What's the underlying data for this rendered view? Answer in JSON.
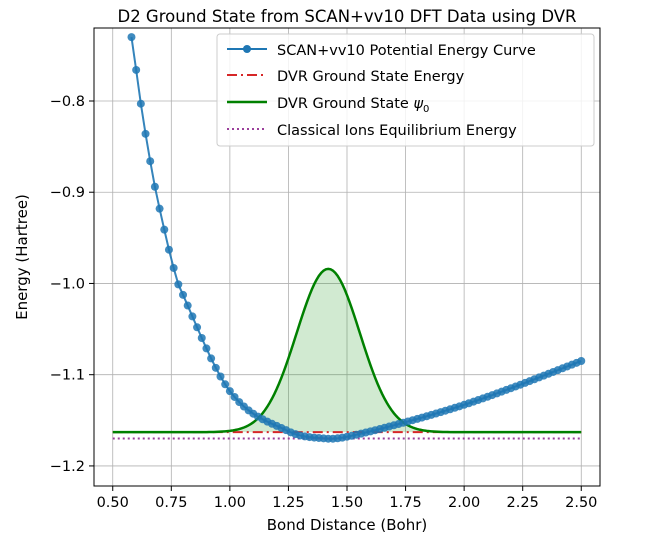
{
  "chart_data": {
    "type": "line",
    "title": "D2 Ground State from SCAN+vv10 DFT Data using DVR",
    "xlabel": "Bond Distance (Bohr)",
    "ylabel": "Energy (Hartree)",
    "xlim": [
      0.42,
      2.58
    ],
    "ylim": [
      -1.222,
      -0.72
    ],
    "x_ticks": [
      "0.50",
      "0.75",
      "1.00",
      "1.25",
      "1.50",
      "1.75",
      "2.00",
      "2.25",
      "2.50"
    ],
    "y_ticks": [
      "−0.8",
      "−0.9",
      "−1.0",
      "−1.1",
      "−1.2"
    ],
    "grid": true,
    "legend_position": "top-right",
    "series": [
      {
        "name": "SCAN+vv10 Potential Energy Curve",
        "style": "line-with-markers",
        "color": "#1f77b4",
        "x_start": 0.58,
        "x_end": 2.5,
        "x_step": 0.02,
        "equilibrium_x": 1.41,
        "equilibrium_energy": -1.17,
        "sample_points": [
          [
            0.58,
            -0.73
          ],
          [
            0.6,
            -0.766
          ],
          [
            0.62,
            -0.803
          ],
          [
            0.64,
            -0.836
          ],
          [
            0.66,
            -0.866
          ],
          [
            0.68,
            -0.894
          ],
          [
            0.7,
            -0.918
          ],
          [
            0.72,
            -0.941
          ],
          [
            0.74,
            -0.963
          ],
          [
            0.76,
            -0.983
          ],
          [
            0.78,
            -1.001
          ],
          [
            1.0,
            -1.118
          ],
          [
            1.25,
            -1.162
          ],
          [
            1.41,
            -1.17
          ],
          [
            1.5,
            -1.168
          ],
          [
            1.75,
            -1.152
          ],
          [
            2.0,
            -1.133
          ],
          [
            2.25,
            -1.11
          ],
          [
            2.5,
            -1.085
          ]
        ]
      },
      {
        "name": "DVR Ground State Energy",
        "style": "dash-dot",
        "color": "#d62728",
        "x_range": [
          0.5,
          2.5
        ],
        "energy": -1.163
      },
      {
        "name": "DVR Ground State $\\psi_0$",
        "label_main": "DVR Ground State ",
        "label_symbol": "ψ",
        "label_subscript": "0",
        "style": "solid",
        "color": "#008000",
        "fill_color": "#2ca02c",
        "x_range": [
          0.5,
          2.5
        ],
        "baseline": -1.163,
        "peak_x": 1.42,
        "peak_value": -0.984,
        "width": 0.135
      },
      {
        "name": "Classical Ions Equilibrium Energy",
        "style": "dotted",
        "color": "#9b3f9b",
        "x_range": [
          0.5,
          2.5
        ],
        "energy": -1.17
      }
    ]
  }
}
